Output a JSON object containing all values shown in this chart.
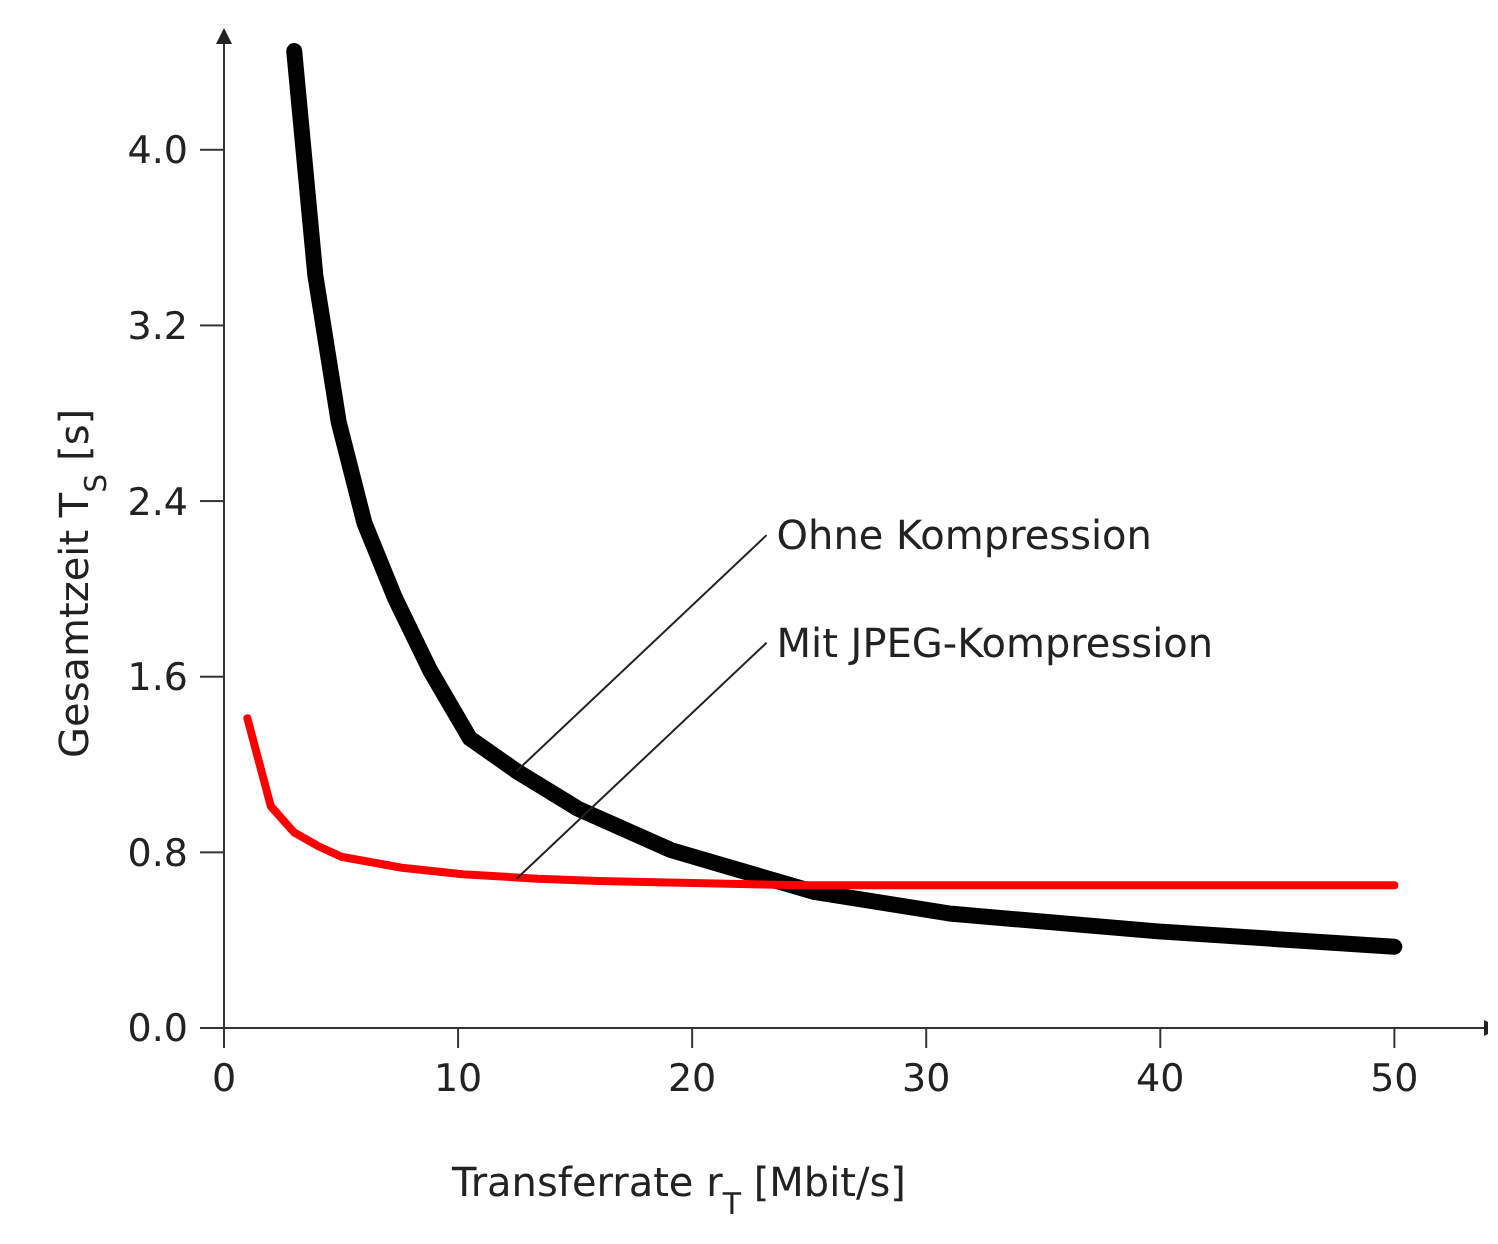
{
  "chart_data": {
    "type": "line",
    "xlabel": "Transferrate r$_{T}$ [Mbit/s]",
    "ylabel": "Gesamtzeit T$_{S}$ [s]",
    "xlim": [
      0,
      54
    ],
    "xticks": [
      0,
      10,
      20,
      30,
      40,
      50
    ],
    "ylim": [
      0,
      4.5
    ],
    "yticks": [
      {
        "value": 0,
        "label": "0.0"
      },
      0.8,
      1.6,
      2.4,
      3.2,
      {
        "value": 4,
        "label": "4.0"
      }
    ],
    "grid": false,
    "marker": "none",
    "line_style": "solid",
    "series": [
      {
        "color": "#000000",
        "x": [
          3,
          3.9,
          4.9,
          6,
          7.3,
          8.8,
          10.5,
          12.5,
          15.1,
          19.1,
          25.2,
          31.1,
          39.9,
          50
        ],
        "values": [
          4.45,
          3.43,
          2.76,
          2.3,
          1.96,
          1.63,
          1.32,
          1.17,
          1.0,
          0.81,
          0.62,
          0.52,
          0.44,
          0.37
        ]
      },
      {
        "color": "#ff0000",
        "x": [
          1,
          2,
          3,
          4,
          5,
          7.6,
          10.2,
          13.4,
          16,
          20,
          25,
          30,
          40,
          50
        ],
        "values": [
          1.41,
          1.01,
          0.89,
          0.83,
          0.78,
          0.73,
          0.7,
          0.68,
          0.67,
          0.66,
          0.65,
          0.65,
          0.65,
          0.65
        ]
      }
    ],
    "annotations": [
      {
        "text": "Ohne Kompression",
        "x": 12.5,
        "y": 1.17
      },
      {
        "text": "Mit JPEG-Kompression",
        "x": 12.5,
        "y": 0.68
      }
    ]
  }
}
